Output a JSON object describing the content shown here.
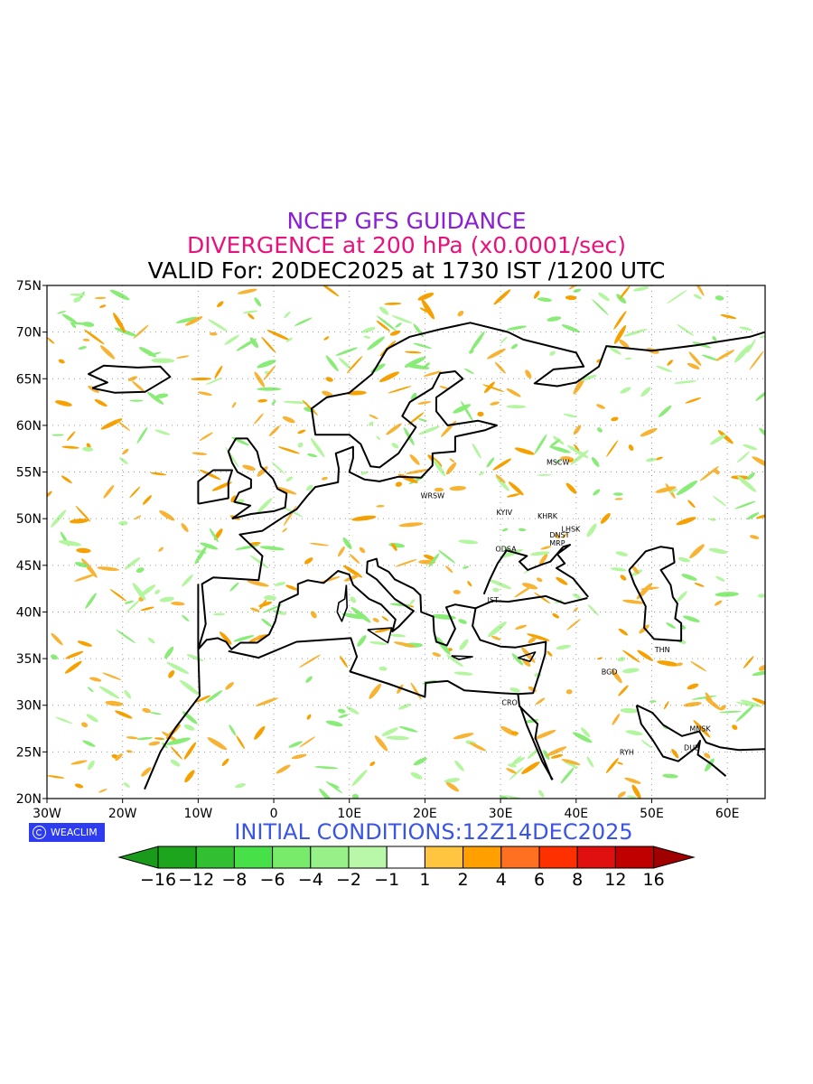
{
  "title": {
    "line1": "NCEP GFS GUIDANCE",
    "line1_color": "#8a1fd6",
    "line2": "DIVERGENCE at 200 hPa (x0.0001/sec)",
    "line2_color": "#e8127d",
    "line3": "VALID For: 20DEC2025 at 1730 IST /1200 UTC",
    "line3_color": "#000000"
  },
  "map": {
    "projection": "lat-lon",
    "lon_range": [
      -30,
      65
    ],
    "lat_range": [
      20,
      75
    ],
    "gridlines": true,
    "lat_ticks": [
      {
        "lat": 75,
        "label": "75N"
      },
      {
        "lat": 70,
        "label": "70N"
      },
      {
        "lat": 65,
        "label": "65N"
      },
      {
        "lat": 60,
        "label": "60N"
      },
      {
        "lat": 55,
        "label": "55N"
      },
      {
        "lat": 50,
        "label": "50N"
      },
      {
        "lat": 45,
        "label": "45N"
      },
      {
        "lat": 40,
        "label": "40N"
      },
      {
        "lat": 35,
        "label": "35N"
      },
      {
        "lat": 30,
        "label": "30N"
      },
      {
        "lat": 25,
        "label": "25N"
      },
      {
        "lat": 20,
        "label": "20N"
      }
    ],
    "lon_ticks": [
      {
        "lon": -30,
        "label": "30W"
      },
      {
        "lon": -20,
        "label": "20W"
      },
      {
        "lon": -10,
        "label": "10W"
      },
      {
        "lon": 0,
        "label": "0"
      },
      {
        "lon": 10,
        "label": "10E"
      },
      {
        "lon": 20,
        "label": "20E"
      },
      {
        "lon": 30,
        "label": "30E"
      },
      {
        "lon": 40,
        "label": "40E"
      },
      {
        "lon": 50,
        "label": "50E"
      },
      {
        "lon": 60,
        "label": "60E"
      }
    ],
    "cities": [
      {
        "name": "MSCW",
        "lon": 37.6,
        "lat": 55.8
      },
      {
        "name": "WRSW",
        "lon": 21.0,
        "lat": 52.2
      },
      {
        "name": "KYIV",
        "lon": 30.5,
        "lat": 50.4
      },
      {
        "name": "KHRK",
        "lon": 36.2,
        "lat": 50.0
      },
      {
        "name": "LHSK",
        "lon": 39.3,
        "lat": 48.6
      },
      {
        "name": "DNST",
        "lon": 37.8,
        "lat": 48.0
      },
      {
        "name": "MRP",
        "lon": 37.5,
        "lat": 47.1
      },
      {
        "name": "ODSA",
        "lon": 30.7,
        "lat": 46.5
      },
      {
        "name": "IST",
        "lon": 29.0,
        "lat": 41.0
      },
      {
        "name": "THN",
        "lon": 51.4,
        "lat": 35.7
      },
      {
        "name": "BGD",
        "lon": 44.4,
        "lat": 33.3
      },
      {
        "name": "CRO",
        "lon": 31.2,
        "lat": 30.0
      },
      {
        "name": "MNSK",
        "lon": 56.4,
        "lat": 27.2
      },
      {
        "name": "RYH",
        "lon": 46.7,
        "lat": 24.7
      },
      {
        "name": "DUB",
        "lon": 55.3,
        "lat": 25.2
      }
    ],
    "colors": {
      "frame": "#000000",
      "grid": "#9a9a9a",
      "coast": "#000000",
      "divergence_low": "#f8b333",
      "divergence_mid": "#f7a100",
      "convergence_low": "#b4f6a0",
      "convergence_mid": "#88ec77"
    }
  },
  "brand": {
    "label": "WEACLIM",
    "color": "#2d3cf0"
  },
  "initial_conditions": {
    "text": "INITIAL CONDITIONS:12Z14DEC2025",
    "color": "#3a55e6"
  },
  "colorbar": {
    "colors": [
      "#1ea51e",
      "#32c032",
      "#48e048",
      "#78ec6a",
      "#98f088",
      "#b8f8a8",
      "#ffffff",
      "#ffc440",
      "#ffa000",
      "#ff7020",
      "#ff3000",
      "#e01010",
      "#c00000"
    ],
    "lower_arrow_color": "#1a9a1a",
    "upper_arrow_color": "#a00000",
    "labels": [
      "−16",
      "−12",
      "−8",
      "−6",
      "−4",
      "−2",
      "−1",
      "1",
      "2",
      "4",
      "6",
      "8",
      "12",
      "16"
    ]
  }
}
